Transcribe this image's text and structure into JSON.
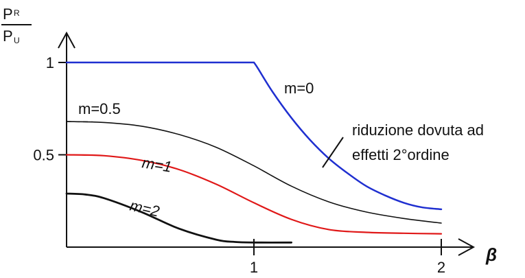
{
  "chart_data": {
    "type": "line",
    "xlabel": "β",
    "ylabel": {
      "numerator": "P",
      "numerator_sub": "R",
      "denominator": "P",
      "denominator_sub": "U"
    },
    "x_ticks": [
      {
        "value": 1,
        "label": "1"
      },
      {
        "value": 2,
        "label": "2"
      }
    ],
    "y_ticks": [
      {
        "value": 1,
        "label": "1"
      },
      {
        "value": 0.5,
        "label": "0.5"
      }
    ],
    "xlim": [
      0,
      2.2
    ],
    "ylim": [
      0,
      1.15
    ],
    "grid": false,
    "colors": {
      "m0": "#1f2fd0",
      "m1": "#e01818",
      "axis": "#111111",
      "black": "#111111"
    },
    "series": [
      {
        "name": "m=0",
        "color": "#1f2fd0",
        "x": [
          0,
          0.5,
          1.0,
          1.02,
          1.1,
          1.2,
          1.3,
          1.4,
          1.5,
          1.6,
          1.7,
          1.8,
          1.9,
          2.0
        ],
        "y": [
          1.0,
          1.0,
          1.0,
          0.97,
          0.84,
          0.7,
          0.58,
          0.48,
          0.4,
          0.33,
          0.28,
          0.24,
          0.215,
          0.205
        ]
      },
      {
        "name": "m=0.5",
        "color": "#111111",
        "x": [
          0,
          0.2,
          0.4,
          0.6,
          0.8,
          1.0,
          1.2,
          1.4,
          1.6,
          1.8,
          2.0
        ],
        "y": [
          0.68,
          0.675,
          0.655,
          0.61,
          0.54,
          0.44,
          0.33,
          0.245,
          0.19,
          0.155,
          0.13
        ]
      },
      {
        "name": "m=1",
        "color": "#e01818",
        "x": [
          0,
          0.2,
          0.4,
          0.6,
          0.8,
          1.0,
          1.2,
          1.4,
          1.6,
          1.8,
          2.0
        ],
        "y": [
          0.5,
          0.495,
          0.47,
          0.42,
          0.34,
          0.24,
          0.15,
          0.095,
          0.08,
          0.075,
          0.072
        ]
      },
      {
        "name": "m=2",
        "color": "#111111",
        "x": [
          0,
          0.1,
          0.2,
          0.4,
          0.6,
          0.8,
          0.9,
          1.0,
          1.2
        ],
        "y": [
          0.29,
          0.285,
          0.265,
          0.19,
          0.1,
          0.04,
          0.028,
          0.025,
          0.025
        ]
      }
    ],
    "annotations": {
      "m0": "m=0",
      "m05": "m=0.5",
      "m1": "m=1",
      "m2": "m=2",
      "note_line1": "riduzione dovuta ad",
      "note_line2": "effetti 2°ordine"
    }
  }
}
